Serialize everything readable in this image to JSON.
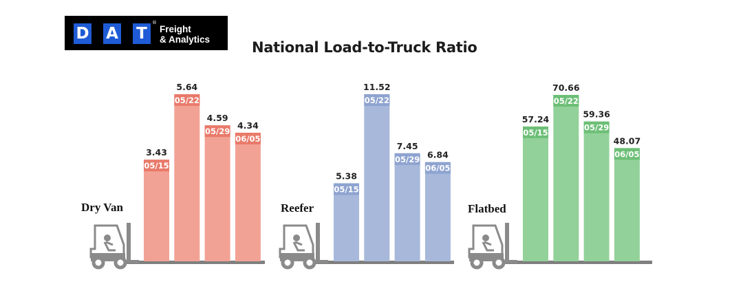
{
  "logo": {
    "letters": [
      "D",
      "A",
      "T"
    ],
    "line1": "Freight",
    "line2": "& Analytics",
    "registered": "®"
  },
  "chart_data": {
    "type": "bar",
    "title": "National Load-to-Truck Ratio",
    "categories": [
      "05/15",
      "05/22",
      "05/29",
      "06/05"
    ],
    "series": [
      {
        "name": "Dry Van",
        "values": [
          3.43,
          5.64,
          4.59,
          4.34
        ],
        "value_labels": [
          "3.43",
          "5.64",
          "4.59",
          "4.34"
        ],
        "color": "#f2a295",
        "band_color": "#e97a6a"
      },
      {
        "name": "Reefer",
        "values": [
          5.38,
          11.52,
          7.45,
          6.84
        ],
        "value_labels": [
          "5.38",
          "11.52",
          "7.45",
          "6.84"
        ],
        "color": "#a7b8da",
        "band_color": "#8ea3d0"
      },
      {
        "name": "Flatbed",
        "values": [
          57.24,
          70.66,
          59.36,
          48.07
        ],
        "value_labels": [
          "57.24",
          "70.66",
          "59.36",
          "48.07"
        ],
        "color": "#93d19a",
        "band_color": "#6cbf76"
      }
    ],
    "grid": false,
    "legend": "none",
    "icon": "forklift-icon"
  }
}
